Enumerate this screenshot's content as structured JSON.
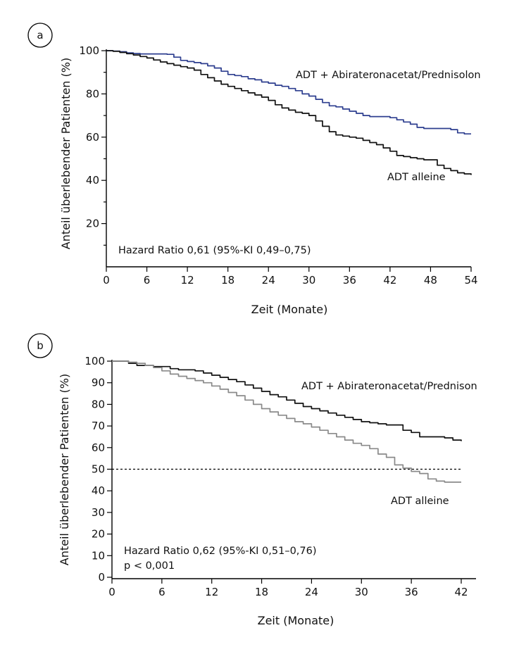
{
  "chart_data": [
    {
      "type": "line",
      "panel_label": "a",
      "xlabel": "Zeit (Monate)",
      "ylabel": "Anteil überlebender Patienten (%)",
      "xlim": [
        0,
        54
      ],
      "ylim": [
        0,
        100
      ],
      "x_ticks": [
        0,
        6,
        12,
        18,
        24,
        30,
        36,
        42,
        48,
        54
      ],
      "y_ticks_labeled": [
        20,
        40,
        60,
        80,
        100
      ],
      "y_ticks_minor": [
        10,
        30,
        50,
        70,
        90
      ],
      "grid": false,
      "annotations": [
        "Hazard Ratio 0,61 (95%-KI 0,49–0,75)"
      ],
      "series": [
        {
          "name": "ADT + Abirateronacetat/Prednisolon",
          "color": "#2d3e8f",
          "x": [
            0,
            1,
            2,
            3,
            4,
            5,
            6,
            7,
            8,
            9,
            10,
            11,
            12,
            13,
            14,
            15,
            16,
            17,
            18,
            19,
            20,
            21,
            22,
            23,
            24,
            25,
            26,
            27,
            28,
            29,
            30,
            31,
            32,
            33,
            34,
            35,
            36,
            37,
            38,
            39,
            40,
            41,
            42,
            43,
            44,
            45,
            46,
            47,
            48,
            49,
            50,
            51,
            52,
            53,
            54
          ],
          "values": [
            100,
            99.8,
            99.5,
            99,
            98.7,
            98.5,
            98.5,
            98.5,
            98.5,
            98.3,
            97,
            95.5,
            95,
            94.5,
            94,
            93,
            92,
            90.5,
            89,
            88.5,
            88,
            87,
            86.5,
            85.5,
            85,
            84,
            83.5,
            82.5,
            81.5,
            80,
            79,
            77.5,
            76,
            74.5,
            74,
            73,
            72,
            71,
            70,
            69.5,
            69.5,
            69.5,
            69,
            68,
            67,
            66,
            64.5,
            64,
            64,
            64,
            64,
            63.5,
            62,
            61.5,
            61.5
          ]
        },
        {
          "name": "ADT alleine",
          "color": "#111111",
          "x": [
            0,
            1,
            2,
            3,
            4,
            5,
            6,
            7,
            8,
            9,
            10,
            11,
            12,
            13,
            14,
            15,
            16,
            17,
            18,
            19,
            20,
            21,
            22,
            23,
            24,
            25,
            26,
            27,
            28,
            29,
            30,
            31,
            32,
            33,
            34,
            35,
            36,
            37,
            38,
            39,
            40,
            41,
            42,
            43,
            44,
            45,
            46,
            47,
            48,
            49,
            50,
            51,
            52,
            53,
            54
          ],
          "values": [
            100,
            99.7,
            99.2,
            98.6,
            98,
            97.3,
            96.6,
            95.7,
            94.8,
            94,
            93.3,
            92.6,
            92,
            91,
            89,
            87.5,
            86,
            84.5,
            83.5,
            82.5,
            81.5,
            80.5,
            79.5,
            78.5,
            77,
            75,
            73.5,
            72.5,
            71.5,
            71,
            70,
            67.5,
            65,
            62.5,
            61,
            60.5,
            60,
            59.5,
            58.5,
            57.5,
            56.5,
            55,
            53.5,
            51.5,
            51,
            50.5,
            50,
            49.5,
            49.5,
            47,
            45.5,
            44.5,
            43.5,
            43,
            42.5
          ]
        }
      ]
    },
    {
      "type": "line",
      "panel_label": "b",
      "xlabel": "Zeit (Monate)",
      "ylabel": "Anteil überlebender Patienten (%)",
      "xlim": [
        0,
        43
      ],
      "ylim": [
        0,
        100
      ],
      "x_ticks": [
        0,
        6,
        12,
        18,
        24,
        30,
        36,
        42
      ],
      "y_ticks_labeled": [
        0,
        10,
        20,
        30,
        40,
        50,
        60,
        70,
        80,
        90,
        100
      ],
      "grid": false,
      "reference_line": 50,
      "annotations": [
        "Hazard Ratio 0,62 (95%-KI 0,51–0,76)",
        "p < 0,001"
      ],
      "series": [
        {
          "name": "ADT + Abirateronacetat/Prednison",
          "color": "#111111",
          "x": [
            0,
            1,
            2,
            3,
            4,
            5,
            6,
            7,
            8,
            9,
            10,
            11,
            12,
            13,
            14,
            15,
            16,
            17,
            18,
            19,
            20,
            21,
            22,
            23,
            24,
            25,
            26,
            27,
            28,
            29,
            30,
            31,
            32,
            33,
            34,
            35,
            36,
            37,
            38,
            39,
            40,
            41,
            42
          ],
          "values": [
            100,
            100,
            99,
            98,
            98,
            97.5,
            97.5,
            96.5,
            96,
            96,
            95.5,
            94.5,
            93.5,
            92.5,
            91.5,
            90.5,
            89,
            87.5,
            86,
            84.5,
            83.5,
            82,
            80.5,
            79,
            78,
            77,
            76,
            75,
            74,
            73,
            72,
            71.5,
            71,
            70.5,
            70.5,
            68,
            67,
            65,
            65,
            65,
            64.5,
            63.5,
            63
          ]
        },
        {
          "name": "ADT alleine",
          "color": "#8a8a8a",
          "x": [
            0,
            1,
            2,
            3,
            4,
            5,
            6,
            7,
            8,
            9,
            10,
            11,
            12,
            13,
            14,
            15,
            16,
            17,
            18,
            19,
            20,
            21,
            22,
            23,
            24,
            25,
            26,
            27,
            28,
            29,
            30,
            31,
            32,
            33,
            34,
            35,
            36,
            37,
            38,
            39,
            40,
            41,
            42
          ],
          "values": [
            100,
            100,
            99.5,
            99,
            98,
            97,
            95.5,
            94,
            93,
            92,
            91,
            90,
            88.5,
            87,
            85.5,
            84,
            82,
            80,
            78,
            76.5,
            75,
            73.5,
            72,
            71,
            69.5,
            68,
            66.5,
            65,
            63.5,
            62,
            61,
            59.5,
            57,
            55.5,
            52,
            50.5,
            49,
            48,
            45.5,
            44.5,
            44,
            44,
            44
          ]
        }
      ]
    }
  ],
  "panels": {
    "a": {
      "label": "a",
      "xlabel": "Zeit (Monate)",
      "ylabel": "Anteil überlebender Patienten (%)",
      "annotation_1": "Hazard Ratio 0,61 (95%-KI 0,49–0,75)",
      "series_1_label": "ADT + Abirateronacetat/Prednisolon",
      "series_2_label": "ADT alleine"
    },
    "b": {
      "label": "b",
      "xlabel": "Zeit (Monate)",
      "ylabel": "Anteil überlebender Patienten (%)",
      "annotation_1": "Hazard Ratio 0,62 (95%-KI 0,51–0,76)",
      "annotation_2": "p < 0,001",
      "series_1_label": "ADT + Abirateronacetat/Prednison",
      "series_2_label": "ADT alleine"
    }
  }
}
